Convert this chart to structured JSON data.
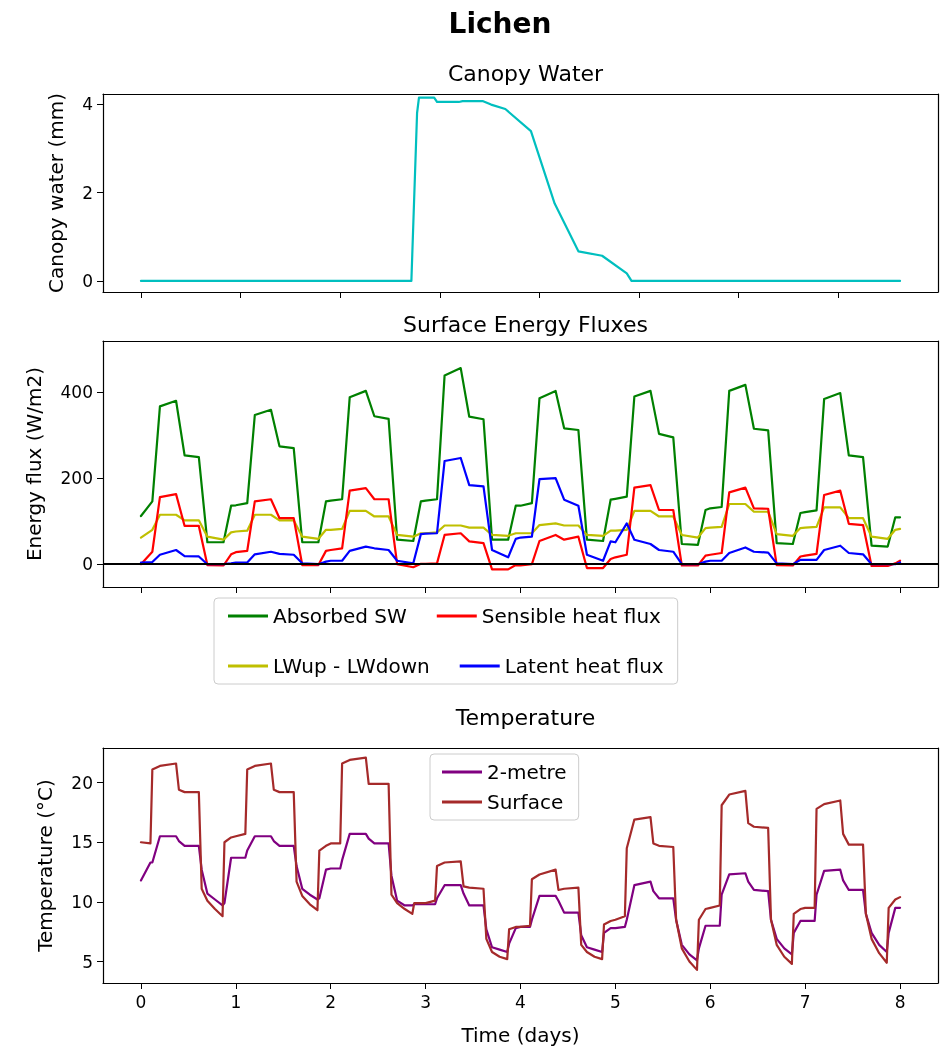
{
  "chart_data": [
    {
      "type": "line",
      "title": "Lichen",
      "subtitle": "Canopy Water",
      "ylabel": "Canopy water (mm)",
      "xlim": [
        -0.4,
        8.4
      ],
      "xticks": [
        {
          "value": 0,
          "label": null
        },
        {
          "value": 1.05,
          "label": null
        },
        {
          "value": 2.1,
          "label": null
        },
        {
          "value": 3.15,
          "label": null
        },
        {
          "value": 4.2,
          "label": null
        },
        {
          "value": 5.25,
          "label": null
        },
        {
          "value": 6.3,
          "label": null
        },
        {
          "value": 7.35,
          "label": null
        }
      ],
      "ylim": [
        -0.25,
        4.23
      ],
      "yticks": [
        0,
        2,
        4
      ],
      "tick_labels": "y",
      "marker": "none",
      "legend": false,
      "x": [
        0,
        2.85,
        2.91,
        2.93,
        3.09,
        3.12,
        3.35,
        3.39,
        3.6,
        3.69,
        3.84,
        4.11,
        4.36,
        4.61,
        4.86,
        5.12,
        5.17,
        8
      ],
      "series": [
        {
          "color": "#00bfbf",
          "values": [
            0,
            0,
            3.8,
            4.15,
            4.15,
            4.05,
            4.05,
            4.07,
            4.07,
            3.99,
            3.89,
            3.39,
            1.75,
            0.67,
            0.57,
            0.17,
            0,
            0
          ]
        }
      ]
    },
    {
      "type": "line",
      "title": "Surface Energy Fluxes",
      "ylabel": "Energy flux (W/m2)",
      "xlim": [
        -0.4,
        8.4
      ],
      "xticks": [
        0,
        1,
        2,
        3,
        4,
        5,
        6,
        7,
        8
      ],
      "ylim": [
        -53,
        519
      ],
      "yticks": [
        0,
        200,
        400
      ],
      "tick_labels": "y",
      "marker": "none",
      "legend": "bottom",
      "ref_lines": [
        {
          "axis": "y",
          "value": 0,
          "label": null,
          "color": "#000000"
        }
      ],
      "x": [
        0,
        0.12,
        0.2,
        0.37,
        0.46,
        0.61,
        0.7,
        0.87,
        0.95,
        1,
        1.12,
        1.2,
        1.37,
        1.46,
        1.61,
        1.7,
        1.87,
        1.95,
        2,
        2.12,
        2.2,
        2.37,
        2.46,
        2.61,
        2.7,
        2.87,
        2.95,
        3,
        3.12,
        3.2,
        3.37,
        3.46,
        3.61,
        3.7,
        3.87,
        3.95,
        4,
        4.12,
        4.2,
        4.37,
        4.46,
        4.61,
        4.7,
        4.87,
        4.95,
        5,
        5.12,
        5.2,
        5.37,
        5.46,
        5.61,
        5.7,
        5.87,
        5.95,
        6,
        6.12,
        6.2,
        6.37,
        6.46,
        6.61,
        6.7,
        6.87,
        6.95,
        7,
        7.12,
        7.2,
        7.37,
        7.46,
        7.61,
        7.7,
        7.87,
        7.95,
        8
      ],
      "series": [
        {
          "name": "Absorbed SW",
          "color": "#008000",
          "values": [
            112,
            146,
            367,
            380,
            253,
            249,
            51,
            51,
            136,
            137,
            142,
            347,
            359,
            274,
            270,
            51,
            51,
            146,
            148,
            151,
            388,
            403,
            344,
            338,
            57,
            54,
            146,
            148,
            151,
            439,
            456,
            343,
            337,
            57,
            57,
            136,
            136,
            142,
            386,
            403,
            316,
            312,
            57,
            54,
            150,
            152,
            157,
            390,
            403,
            303,
            295,
            47,
            45,
            126,
            130,
            133,
            403,
            417,
            315,
            311,
            49,
            47,
            119,
            121,
            125,
            384,
            398,
            253,
            249,
            43,
            41,
            109,
            109
          ]
        },
        {
          "name": "LWup - LWdown",
          "color": "#bfbf00",
          "values": [
            62,
            80,
            115,
            115,
            102,
            102,
            64,
            57,
            74,
            76,
            78,
            115,
            115,
            102,
            102,
            64,
            59,
            80,
            80,
            82,
            124,
            124,
            111,
            111,
            68,
            64,
            72,
            72,
            74,
            90,
            90,
            85,
            85,
            68,
            66,
            72,
            72,
            72,
            91,
            95,
            90,
            90,
            68,
            66,
            78,
            78,
            80,
            124,
            124,
            111,
            111,
            68,
            62,
            84,
            85,
            87,
            140,
            140,
            122,
            122,
            70,
            66,
            84,
            85,
            87,
            132,
            132,
            107,
            107,
            64,
            59,
            80,
            82
          ]
        },
        {
          "name": "Sensible heat flux",
          "color": "#ff0000",
          "values": [
            0,
            29,
            156,
            163,
            89,
            89,
            -2,
            -3,
            23,
            28,
            31,
            146,
            151,
            107,
            107,
            -2,
            -2,
            31,
            33,
            37,
            171,
            177,
            151,
            151,
            0,
            -7,
            1,
            1,
            2,
            68,
            72,
            53,
            49,
            -12,
            -12,
            -2,
            -3,
            0,
            54,
            68,
            57,
            64,
            -9,
            -9,
            12,
            16,
            22,
            178,
            184,
            126,
            126,
            -3,
            -3,
            20,
            22,
            26,
            167,
            178,
            130,
            129,
            -2,
            -3,
            18,
            20,
            24,
            161,
            171,
            94,
            91,
            -4,
            -4,
            2,
            8
          ]
        },
        {
          "name": "Latent heat flux",
          "color": "#0000ff",
          "values": [
            4,
            5,
            22,
            33,
            19,
            18,
            0,
            0,
            2,
            4,
            4,
            23,
            29,
            24,
            22,
            2,
            0,
            6,
            8,
            8,
            31,
            41,
            37,
            33,
            8,
            2,
            70,
            71,
            72,
            240,
            247,
            184,
            181,
            33,
            16,
            59,
            62,
            64,
            198,
            200,
            150,
            136,
            22,
            8,
            53,
            51,
            95,
            57,
            47,
            33,
            29,
            0,
            0,
            6,
            8,
            8,
            26,
            39,
            29,
            27,
            2,
            0,
            10,
            10,
            10,
            33,
            43,
            26,
            23,
            0,
            0,
            0,
            4
          ]
        }
      ]
    },
    {
      "type": "line",
      "title": "Temperature",
      "xlabel": "Time (days)",
      "ylabel": "Temperature (°C)",
      "xlim": [
        -0.4,
        8.4
      ],
      "xticks": [
        0,
        1,
        2,
        3,
        4,
        5,
        6,
        7,
        8
      ],
      "ylim": [
        3.2,
        22.9
      ],
      "yticks": [
        5,
        10,
        15,
        20
      ],
      "marker": "none",
      "legend": "top",
      "x": [
        0,
        0.1,
        0.12,
        0.2,
        0.37,
        0.4,
        0.46,
        0.61,
        0.64,
        0.7,
        0.78,
        0.86,
        0.88,
        0.95,
        1,
        1.1,
        1.12,
        1.2,
        1.37,
        1.4,
        1.46,
        1.61,
        1.64,
        1.7,
        1.78,
        1.86,
        1.88,
        1.95,
        2,
        2.1,
        2.12,
        2.2,
        2.37,
        2.4,
        2.46,
        2.61,
        2.64,
        2.7,
        2.78,
        2.86,
        2.88,
        2.95,
        3,
        3.1,
        3.12,
        3.2,
        3.37,
        3.4,
        3.46,
        3.61,
        3.64,
        3.7,
        3.78,
        3.86,
        3.88,
        3.95,
        4,
        4.1,
        4.12,
        4.2,
        4.37,
        4.4,
        4.46,
        4.61,
        4.64,
        4.7,
        4.78,
        4.86,
        4.88,
        4.95,
        5,
        5.1,
        5.12,
        5.2,
        5.37,
        5.4,
        5.46,
        5.61,
        5.64,
        5.7,
        5.78,
        5.86,
        5.88,
        5.95,
        6,
        6.1,
        6.12,
        6.2,
        6.37,
        6.4,
        6.46,
        6.61,
        6.64,
        6.7,
        6.78,
        6.86,
        6.88,
        6.95,
        7,
        7.1,
        7.12,
        7.2,
        7.37,
        7.4,
        7.46,
        7.61,
        7.64,
        7.7,
        7.78,
        7.86,
        7.88,
        7.95,
        8
      ],
      "series": [
        {
          "name": "2-metre",
          "color": "#800080",
          "values": [
            11.8,
            13.3,
            13.3,
            15.5,
            15.5,
            15.1,
            14.7,
            14.7,
            12.7,
            10.7,
            10.2,
            9.7,
            9.9,
            13.7,
            13.7,
            13.7,
            14.3,
            15.5,
            15.5,
            15.1,
            14.7,
            14.7,
            13.0,
            11.1,
            10.6,
            10.2,
            10.3,
            12.7,
            12.8,
            12.8,
            13.5,
            15.7,
            15.7,
            15.3,
            14.9,
            14.9,
            12.2,
            10.1,
            9.7,
            9.7,
            9.8,
            9.8,
            9.8,
            9.8,
            10.3,
            11.4,
            11.4,
            10.7,
            9.7,
            9.7,
            7.7,
            6.2,
            6.0,
            5.8,
            6.5,
            7.8,
            7.9,
            7.9,
            8.5,
            10.5,
            10.5,
            10.1,
            9.1,
            9.1,
            7.2,
            6.2,
            6.0,
            5.8,
            7.4,
            7.8,
            7.8,
            7.9,
            8.5,
            11.4,
            11.7,
            10.9,
            10.3,
            10.3,
            8.5,
            6.4,
            5.6,
            5.1,
            6.1,
            8.0,
            8.0,
            8.0,
            10.6,
            12.3,
            12.4,
            11.7,
            11.0,
            10.9,
            8.5,
            6.9,
            6.1,
            5.6,
            7.4,
            8.4,
            8.4,
            8.4,
            10.6,
            12.6,
            12.7,
            11.8,
            11.0,
            11.0,
            9.0,
            7.4,
            6.4,
            5.8,
            7.4,
            9.5,
            9.5
          ]
        },
        {
          "name": "Surface",
          "color": "#a52a2a",
          "values": [
            15.0,
            14.9,
            21.1,
            21.4,
            21.6,
            19.4,
            19.2,
            19.2,
            11.1,
            10.1,
            9.4,
            8.8,
            15.0,
            15.4,
            15.5,
            15.7,
            21.1,
            21.4,
            21.6,
            19.4,
            19.2,
            19.2,
            11.7,
            10.5,
            9.8,
            9.3,
            14.3,
            14.7,
            14.9,
            14.9,
            21.6,
            21.9,
            22.1,
            19.9,
            19.9,
            19.9,
            10.6,
            9.9,
            9.4,
            9.0,
            9.9,
            9.9,
            9.9,
            10.1,
            13.0,
            13.3,
            13.4,
            11.3,
            11.2,
            11.1,
            6.9,
            5.8,
            5.4,
            5.2,
            7.7,
            7.9,
            7.9,
            8.0,
            11.9,
            12.3,
            12.7,
            11.0,
            11.1,
            11.2,
            6.4,
            5.8,
            5.4,
            5.2,
            8.1,
            8.4,
            8.5,
            8.8,
            14.5,
            16.9,
            17.1,
            14.9,
            14.7,
            14.6,
            8.5,
            6.1,
            5.0,
            4.3,
            8.5,
            9.4,
            9.5,
            9.7,
            18.1,
            19.0,
            19.3,
            16.6,
            16.3,
            16.2,
            8.5,
            6.4,
            5.4,
            4.8,
            9.0,
            9.4,
            9.5,
            9.5,
            17.8,
            18.2,
            18.5,
            15.7,
            14.8,
            14.8,
            9.0,
            6.9,
            5.7,
            4.9,
            9.5,
            10.2,
            10.4
          ]
        }
      ]
    }
  ]
}
